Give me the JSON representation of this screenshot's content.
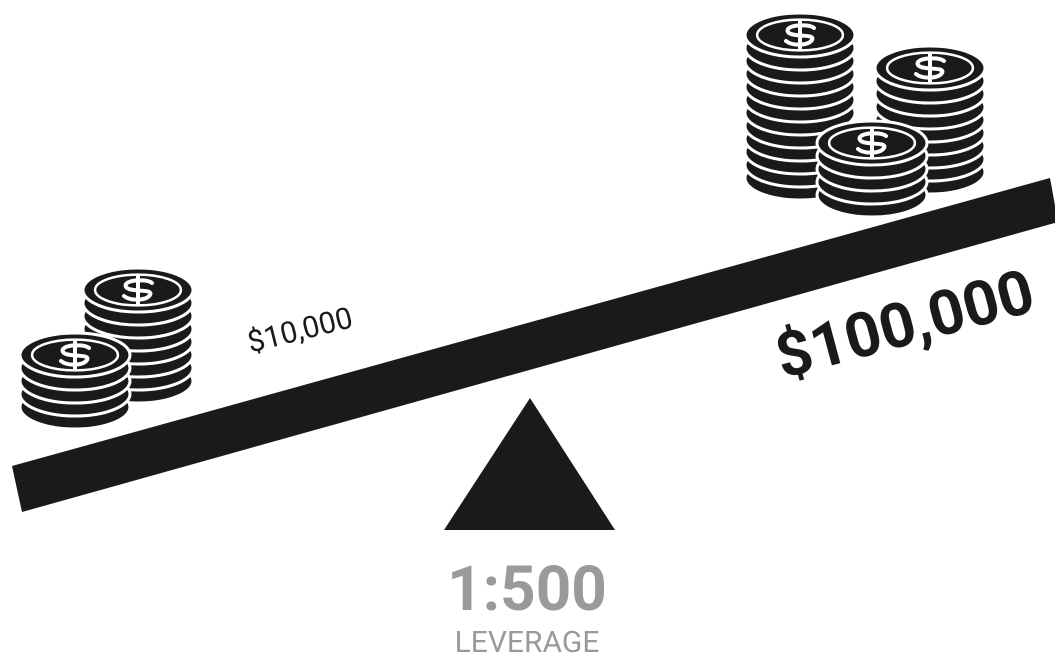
{
  "left_amount": "$10,000",
  "right_amount": "$100,000",
  "ratio": "1:500",
  "ratio_caption": "LEVERAGE"
}
